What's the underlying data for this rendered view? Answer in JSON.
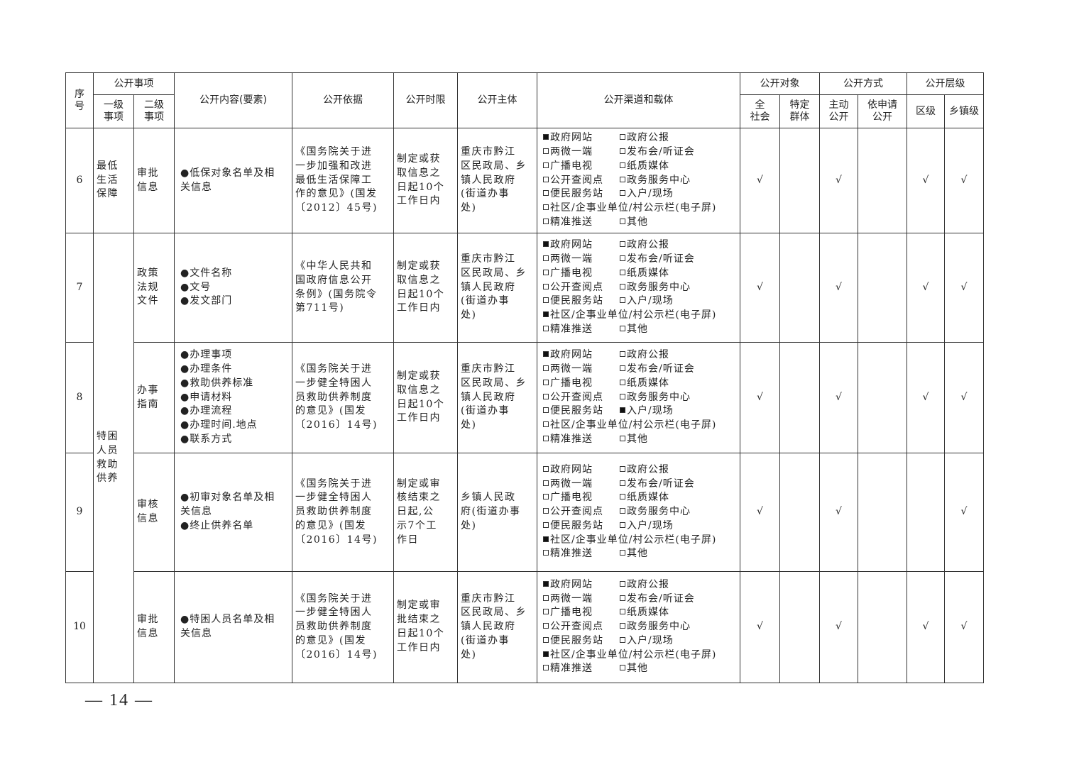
{
  "header": {
    "seq": "序\n号",
    "item_group": "公开事项",
    "level1": "一级\n事项",
    "level2": "二级\n事项",
    "content": "公开内容(要素)",
    "basis": "公开依据",
    "time_limit": "公开时限",
    "subject": "公开主体",
    "channel": "公开渠道和载体",
    "target_group": "公开对象",
    "target_all": "全\n社会",
    "target_specific": "特定\n群体",
    "method_group": "公开方式",
    "method_active": "主动\n公开",
    "method_request": "依申请\n公开",
    "level_group": "公开层级",
    "level_district": "区级",
    "level_town": "乡镇级"
  },
  "channel_options": [
    "政府网站",
    "政府公报",
    "两微一端",
    "发布会/听证会",
    "广播电视",
    "纸质媒体",
    "公开查阅点",
    "政务服务中心",
    "便民服务站",
    "入户/现场",
    "社区/企事业单位/村公示栏(电子屏)",
    "精准推送",
    "其他"
  ],
  "level1_groups": [
    {
      "label": "最低\n生活\n保障",
      "rows": 1
    },
    {
      "label": "特困\n人员\n救助\n供养",
      "rows": 4
    }
  ],
  "rows": [
    {
      "seq": "6",
      "level2": "审批\n信息",
      "content": "●低保对象名单及相\n关信息",
      "basis": "《国务院关于进\n一步加强和改进\n最低生活保障工\n作的意见》(国发\n〔2012〕45号)",
      "time_limit": "制定或获\n取信息之\n日起10个\n工作日内",
      "subject": "重庆市黔江\n区民政局、乡\n镇人民政府\n(街道办事\n处)",
      "channels_checked": [
        "政府网站"
      ],
      "target_all": "√",
      "target_specific": "",
      "method_active": "√",
      "method_request": "",
      "level_district": "√",
      "level_town": "√"
    },
    {
      "seq": "7",
      "level2": "政策\n法规\n文件",
      "content": "●文件名称\n●文号\n●发文部门",
      "basis": "《中华人民共和\n国政府信息公开\n条例》(国务院令\n第711号)",
      "time_limit": "制定或获\n取信息之\n日起10个\n工作日内",
      "subject": "重庆市黔江\n区民政局、乡\n镇人民政府\n(街道办事\n处)",
      "channels_checked": [
        "政府网站",
        "社区/企事业单位/村公示栏(电子屏)"
      ],
      "target_all": "√",
      "target_specific": "",
      "method_active": "√",
      "method_request": "",
      "level_district": "√",
      "level_town": "√"
    },
    {
      "seq": "8",
      "level2": "办事\n指南",
      "content": "●办理事项\n●办理条件\n●救助供养标准\n●申请材料\n●办理流程\n●办理时间.地点\n  ●联系方式",
      "basis": "《国务院关于进\n一步健全特困人\n员救助供养制度\n的意见》(国发\n〔2016〕14号)",
      "time_limit": "制定或获\n取信息之\n日起10个\n工作日内",
      "subject": "重庆市黔江\n区民政局、乡\n镇人民政府\n(街道办事\n处)",
      "channels_checked": [
        "政府网站",
        "入户/现场"
      ],
      "target_all": "√",
      "target_specific": "",
      "method_active": "√",
      "method_request": "",
      "level_district": "√",
      "level_town": "√"
    },
    {
      "seq": "9",
      "level2": "审核\n信息",
      "content": "●初审对象名单及相\n关信息\n●终止供养名单",
      "basis": "《国务院关于进\n一步健全特困人\n员救助供养制度\n的意见》(国发\n〔2016〕14号)",
      "time_limit": "制定或审\n核结束之\n日起,公\n示7个工\n作日",
      "subject": "乡镇人民政\n府(街道办事\n处)",
      "channels_checked": [
        "社区/企事业单位/村公示栏(电子屏)"
      ],
      "target_all": "√",
      "target_specific": "",
      "method_active": "√",
      "method_request": "",
      "level_district": "",
      "level_town": "√"
    },
    {
      "seq": "10",
      "level2": "审批\n信息",
      "content": "●特困人员名单及相\n关信息",
      "basis": "《国务院关于进\n一步健全特困人\n员救助供养制度\n的意见》(国发\n〔2016〕14号)",
      "time_limit": "制定或审\n批结束之\n日起10个\n工作日内",
      "subject": "重庆市黔江\n区民政局、乡\n镇人民政府\n(街道办事\n处)",
      "channels_checked": [
        "政府网站",
        "社区/企事业单位/村公示栏(电子屏)"
      ],
      "target_all": "√",
      "target_specific": "",
      "method_active": "√",
      "method_request": "",
      "level_district": "√",
      "level_town": "√"
    }
  ],
  "footer": {
    "page_number": "— 14 —"
  }
}
